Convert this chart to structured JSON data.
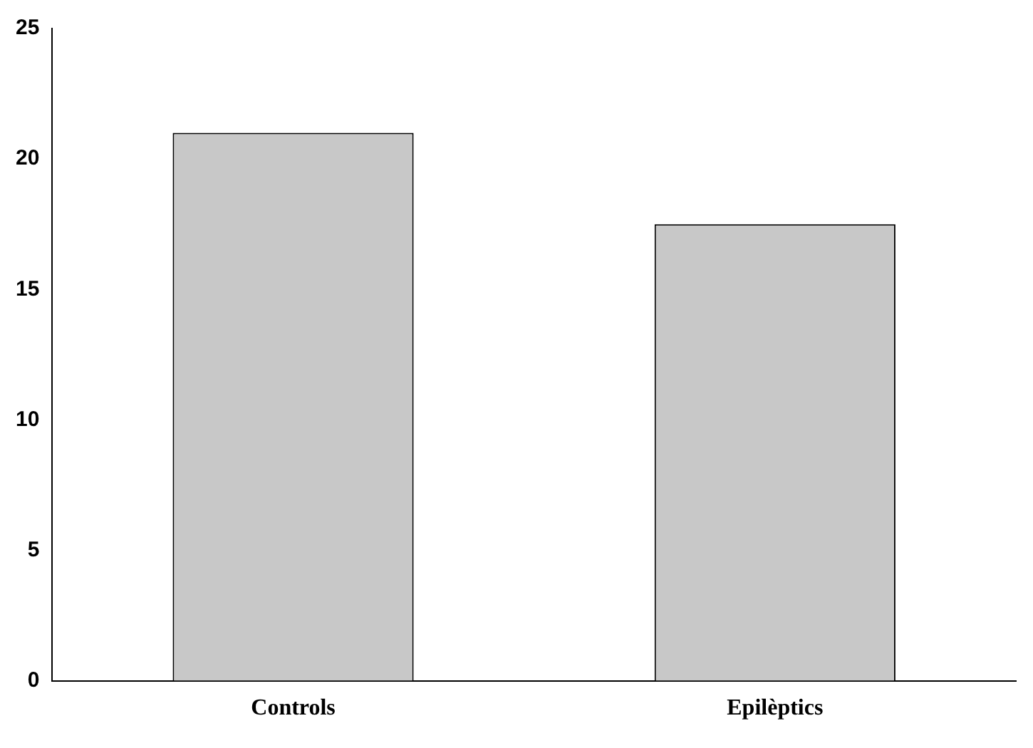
{
  "chart_data": {
    "type": "bar",
    "categories": [
      "Controls",
      "Epilèptics"
    ],
    "values": [
      21,
      17.5
    ],
    "color": "#c8c8c8",
    "ylim": [
      0,
      25
    ],
    "yticks": [
      0,
      5,
      10,
      15,
      20,
      25
    ],
    "grid": false,
    "legend": false
  }
}
